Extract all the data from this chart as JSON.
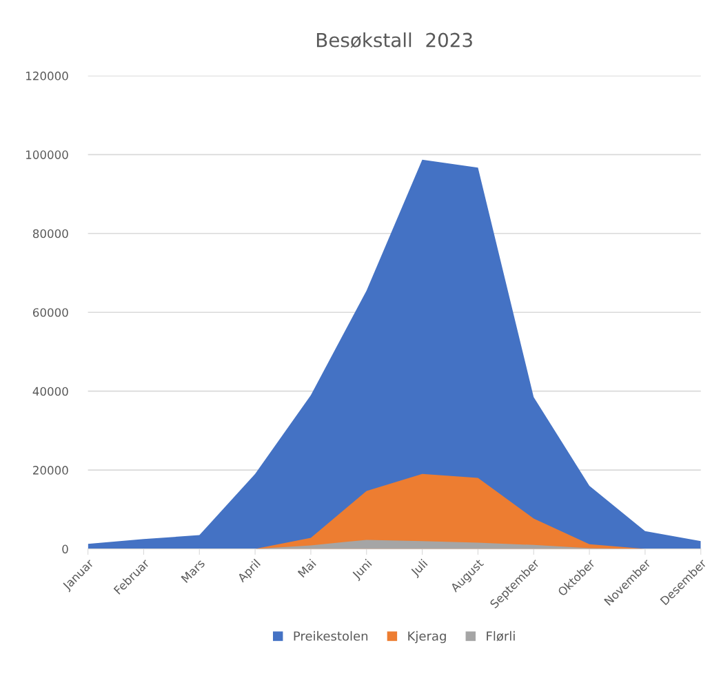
{
  "chart_data": {
    "type": "area",
    "title": "Besøkstall  2023",
    "categories": [
      "Januar",
      "Februar",
      "Mars",
      "April",
      "Mai",
      "Juni",
      "Juli",
      "August",
      "September",
      "Oktober",
      "November",
      "Desember"
    ],
    "series": [
      {
        "name": "Preikestolen",
        "color": "#4472c4",
        "values": [
          1300,
          2500,
          3500,
          19000,
          39000,
          65500,
          98700,
          96700,
          38500,
          16000,
          4500,
          2000
        ]
      },
      {
        "name": "Kjerag",
        "color": "#ed7d31",
        "values": [
          0,
          0,
          0,
          0,
          2800,
          14700,
          19000,
          18000,
          7700,
          1200,
          0,
          0
        ]
      },
      {
        "name": "Flørli",
        "color": "#a5a5a5",
        "values": [
          0,
          0,
          0,
          0,
          900,
          2300,
          2000,
          1600,
          1000,
          200,
          0,
          0
        ]
      }
    ],
    "ylim": [
      0,
      120000
    ],
    "yticks": [
      0,
      20000,
      40000,
      60000,
      80000,
      100000,
      120000
    ],
    "grid": "y",
    "legend": "bottom"
  }
}
